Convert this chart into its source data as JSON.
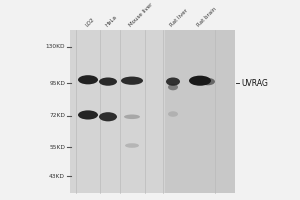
{
  "figure_bg": "#f2f2f2",
  "gel_bg_left": "#d8d8d8",
  "gel_bg_right": "#c0c0c0",
  "lane_labels": [
    "LO2",
    "HeLa",
    "Mouse liver",
    "Rat liver",
    "Rat brain"
  ],
  "mw_markers": [
    "130KD",
    "95KD",
    "72KD",
    "55KD",
    "43KD"
  ],
  "mw_positions": [
    130,
    95,
    72,
    55,
    43
  ],
  "uvrag_label": "UVRAG",
  "marker_label_color": "#333333",
  "lane_label_color": "#333333",
  "band_dark": "#111111",
  "band_mid": "#555555",
  "band_light": "#aaaaaa",
  "separator_color": "#bbbbbb",
  "tick_color": "#555555"
}
